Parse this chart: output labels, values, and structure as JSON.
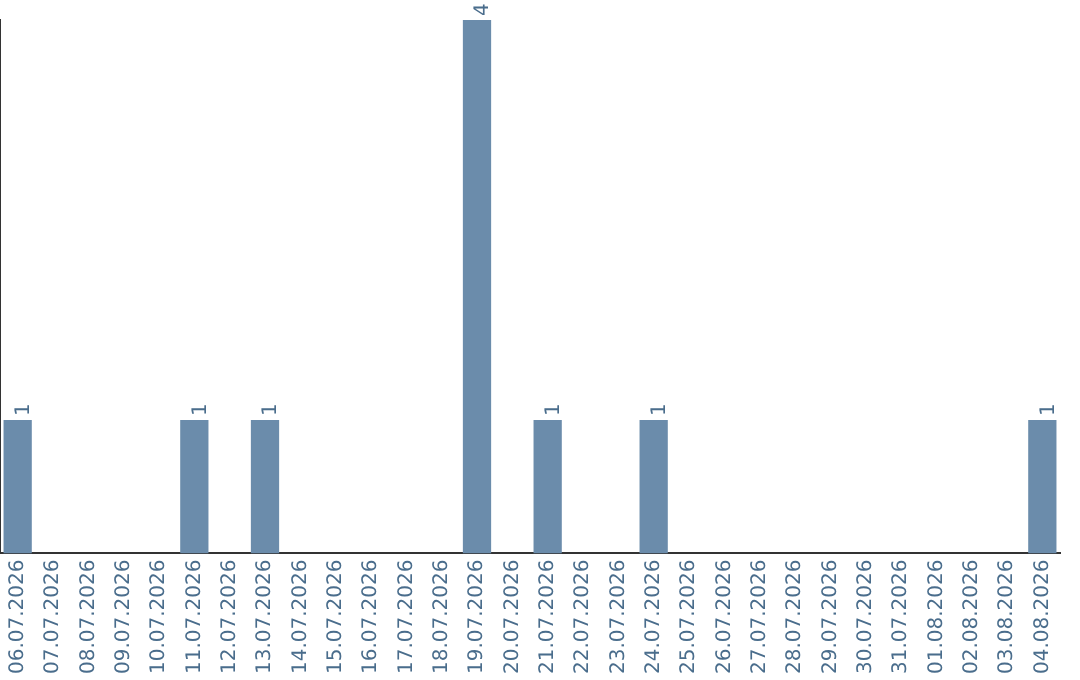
{
  "chart_data": {
    "type": "bar",
    "categories": [
      "06.07.2026",
      "07.07.2026",
      "08.07.2026",
      "09.07.2026",
      "10.07.2026",
      "11.07.2026",
      "12.07.2026",
      "13.07.2026",
      "14.07.2026",
      "15.07.2026",
      "16.07.2026",
      "17.07.2026",
      "18.07.2026",
      "19.07.2026",
      "20.07.2026",
      "21.07.2026",
      "22.07.2026",
      "23.07.2026",
      "24.07.2026",
      "25.07.2026",
      "26.07.2026",
      "27.07.2026",
      "28.07.2026",
      "29.07.2026",
      "30.07.2026",
      "31.07.2026",
      "01.08.2026",
      "02.08.2026",
      "03.08.2026",
      "04.08.2026"
    ],
    "values": [
      1,
      0,
      0,
      0,
      0,
      1,
      0,
      1,
      0,
      0,
      0,
      0,
      0,
      4,
      0,
      1,
      0,
      0,
      1,
      0,
      0,
      0,
      0,
      0,
      0,
      0,
      0,
      0,
      0,
      1
    ],
    "value_labels": [
      "1",
      null,
      null,
      null,
      null,
      "1",
      null,
      "1",
      null,
      null,
      null,
      null,
      null,
      "4",
      null,
      "1",
      null,
      null,
      "1",
      null,
      null,
      null,
      null,
      null,
      null,
      null,
      null,
      null,
      null,
      "1"
    ],
    "color": "#6b8cab",
    "grid": false,
    "legend": false,
    "tick_labels": "x"
  }
}
